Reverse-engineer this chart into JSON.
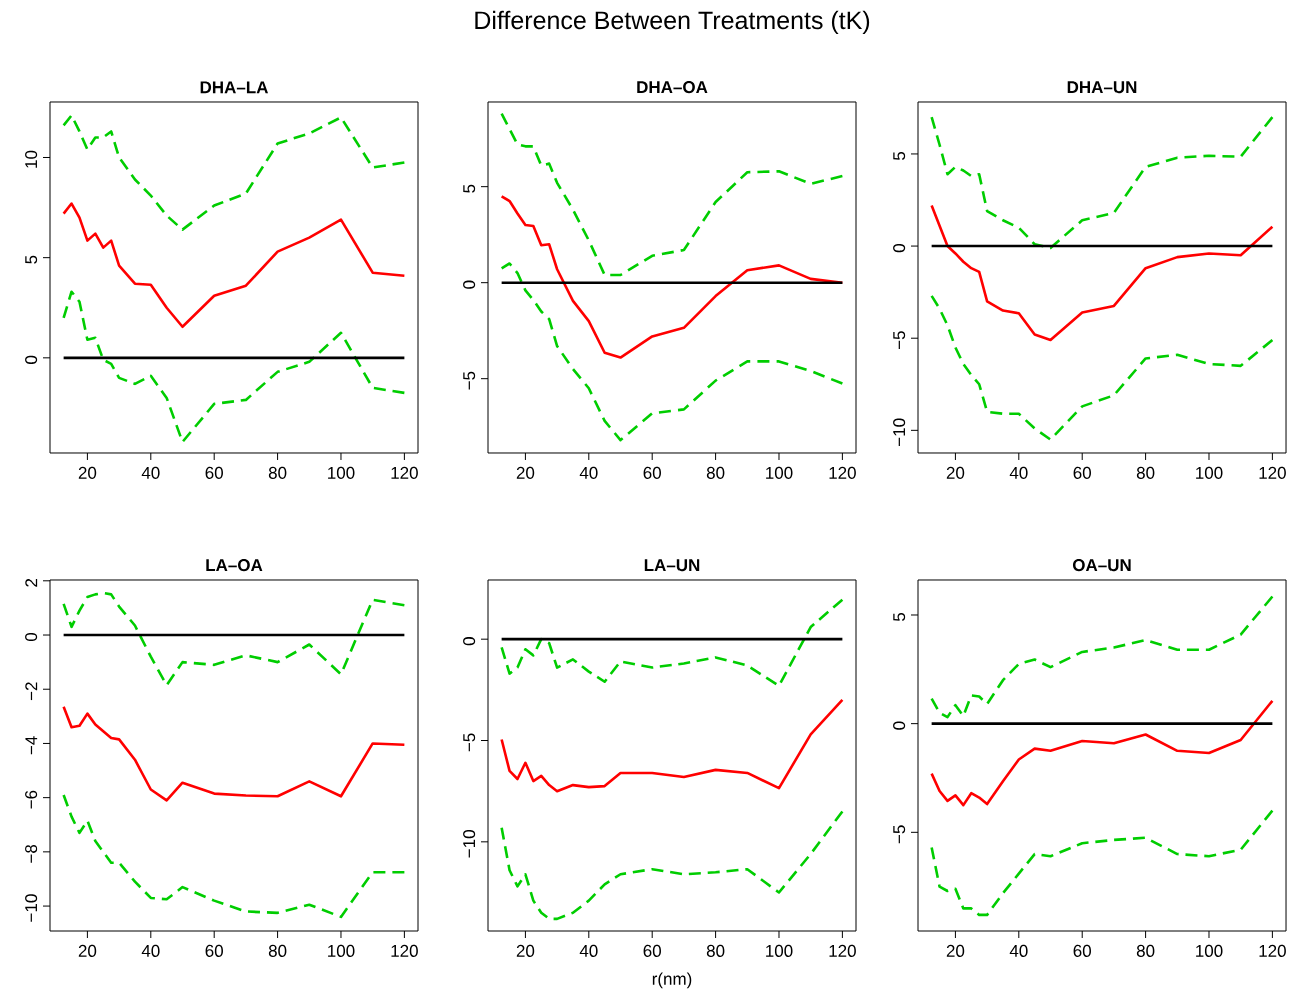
{
  "chart_data": [
    {
      "type": "line",
      "title": "DHA–LA",
      "xlim": [
        8.2,
        124.3
      ],
      "ylim": [
        -4.75,
        12.77
      ],
      "xticks": [
        20,
        40,
        60,
        80,
        100,
        120
      ],
      "yticks": [
        0,
        5,
        10
      ],
      "x": [
        12.5,
        15,
        17.5,
        20,
        22.5,
        25,
        27.5,
        30,
        35,
        40,
        45,
        50,
        60,
        70,
        80,
        90,
        100,
        110,
        120
      ],
      "ref_lines": [
        {
          "axis": "y",
          "value": 0,
          "color": "#000000"
        }
      ],
      "series": [
        {
          "color": "#00cd00",
          "line_style": "dashed",
          "values": [
            11.6,
            12.1,
            11.3,
            10.4,
            11.0,
            11.0,
            11.3,
            10.0,
            8.9,
            8.1,
            7.1,
            6.4,
            7.6,
            8.2,
            10.7,
            11.2,
            12.0,
            9.5,
            9.75
          ]
        },
        {
          "color": "#ff0000",
          "line_style": "solid",
          "values": [
            7.2,
            7.7,
            7.0,
            5.85,
            6.2,
            5.5,
            5.85,
            4.6,
            3.7,
            3.65,
            2.5,
            1.55,
            3.1,
            3.6,
            5.3,
            6.0,
            6.9,
            4.25,
            4.1
          ]
        },
        {
          "color": "#00cd00",
          "line_style": "dashed",
          "values": [
            2.0,
            3.3,
            2.8,
            0.9,
            1.0,
            -0.1,
            -0.3,
            -1.0,
            -1.3,
            -0.9,
            -2.0,
            -4.2,
            -2.3,
            -2.1,
            -0.7,
            -0.2,
            1.25,
            -1.5,
            -1.75
          ]
        }
      ]
    },
    {
      "type": "line",
      "title": "DHA–OA",
      "annotations": [
        "Difference Between Treatments (tK)"
      ],
      "xlim": [
        8.2,
        124.3
      ],
      "ylim": [
        -8.87,
        9.41
      ],
      "xticks": [
        20,
        40,
        60,
        80,
        100,
        120
      ],
      "yticks": [
        {
          "value": -5,
          "label": "−5"
        },
        0,
        5
      ],
      "x": [
        12.5,
        15,
        17.5,
        20,
        22.5,
        25,
        27.5,
        30,
        35,
        40,
        45,
        50,
        60,
        70,
        80,
        90,
        100,
        110,
        120
      ],
      "ref_lines": [
        {
          "axis": "y",
          "value": 0,
          "color": "#000000"
        }
      ],
      "series": [
        {
          "color": "#00cd00",
          "line_style": "dashed",
          "values": [
            8.8,
            8.0,
            7.2,
            7.1,
            7.1,
            6.1,
            6.2,
            5.2,
            3.8,
            2.2,
            0.4,
            0.4,
            1.4,
            1.7,
            4.2,
            5.75,
            5.8,
            5.15,
            5.55
          ]
        },
        {
          "color": "#ff0000",
          "line_style": "solid",
          "values": [
            4.5,
            4.25,
            3.6,
            3.0,
            2.95,
            1.95,
            2.0,
            0.7,
            -0.95,
            -2.0,
            -3.65,
            -3.9,
            -2.8,
            -2.35,
            -0.7,
            0.65,
            0.9,
            0.2,
            0
          ]
        },
        {
          "color": "#00cd00",
          "line_style": "dashed",
          "values": [
            0.75,
            1.0,
            0.5,
            -0.4,
            -0.9,
            -1.5,
            -1.9,
            -3.3,
            -4.5,
            -5.5,
            -7.2,
            -8.2,
            -6.8,
            -6.6,
            -5.1,
            -4.1,
            -4.1,
            -4.6,
            -5.25
          ]
        }
      ]
    },
    {
      "type": "line",
      "title": "DHA–UN",
      "xlim": [
        8.2,
        124.3
      ],
      "ylim": [
        -11.23,
        7.82
      ],
      "xticks": [
        20,
        40,
        60,
        80,
        100,
        120
      ],
      "yticks": [
        {
          "value": -10,
          "label": "−10"
        },
        {
          "value": -5,
          "label": "−5"
        },
        0,
        5
      ],
      "x": [
        12.5,
        15,
        17.5,
        20,
        22.5,
        25,
        27.5,
        30,
        35,
        40,
        45,
        50,
        60,
        70,
        80,
        90,
        100,
        110,
        120
      ],
      "ref_lines": [
        {
          "axis": "y",
          "value": 0,
          "color": "#000000"
        }
      ],
      "series": [
        {
          "color": "#00cd00",
          "line_style": "dashed",
          "values": [
            7.0,
            5.5,
            3.9,
            4.3,
            4.1,
            3.8,
            3.9,
            1.9,
            1.4,
            1.0,
            0.1,
            -0.1,
            1.4,
            1.8,
            4.3,
            4.8,
            4.9,
            4.85,
            7.0
          ]
        },
        {
          "color": "#ff0000",
          "line_style": "solid",
          "values": [
            2.2,
            1.1,
            0.0,
            -0.4,
            -0.85,
            -1.2,
            -1.4,
            -3.0,
            -3.5,
            -3.65,
            -4.8,
            -5.1,
            -3.6,
            -3.25,
            -1.2,
            -0.6,
            -0.4,
            -0.5,
            1.05
          ]
        },
        {
          "color": "#00cd00",
          "line_style": "dashed",
          "values": [
            -2.7,
            -3.4,
            -4.3,
            -5.5,
            -6.4,
            -7.0,
            -7.5,
            -9.0,
            -9.1,
            -9.1,
            -9.9,
            -10.5,
            -8.7,
            -8.1,
            -6.1,
            -5.9,
            -6.4,
            -6.5,
            -5.1
          ]
        }
      ]
    },
    {
      "type": "line",
      "title": "LA–OA",
      "xlim": [
        8.2,
        124.3
      ],
      "ylim": [
        -10.92,
        2.03
      ],
      "xticks": [
        20,
        40,
        60,
        80,
        100,
        120
      ],
      "yticks": [
        {
          "value": -10,
          "label": "−10"
        },
        {
          "value": -8,
          "label": "−8"
        },
        {
          "value": -6,
          "label": "−6"
        },
        {
          "value": -4,
          "label": "−4"
        },
        {
          "value": -2,
          "label": "−2"
        },
        0,
        2
      ],
      "x": [
        12.5,
        15,
        17.5,
        20,
        22.5,
        25,
        27.5,
        30,
        35,
        40,
        45,
        50,
        60,
        70,
        80,
        90,
        100,
        110,
        120
      ],
      "ref_lines": [
        {
          "axis": "y",
          "value": 0,
          "color": "#000000"
        }
      ],
      "series": [
        {
          "color": "#00cd00",
          "line_style": "dashed",
          "values": [
            1.15,
            0.3,
            0.9,
            1.4,
            1.5,
            1.55,
            1.5,
            1.05,
            0.35,
            -0.8,
            -1.85,
            -1.0,
            -1.1,
            -0.75,
            -1.0,
            -0.35,
            -1.45,
            1.3,
            1.1
          ]
        },
        {
          "color": "#ff0000",
          "line_style": "solid",
          "values": [
            -2.65,
            -3.4,
            -3.35,
            -2.9,
            -3.3,
            -3.55,
            -3.8,
            -3.85,
            -4.6,
            -5.7,
            -6.1,
            -5.45,
            -5.85,
            -5.92,
            -5.95,
            -5.4,
            -5.95,
            -4.0,
            -4.05
          ]
        },
        {
          "color": "#00cd00",
          "line_style": "dashed",
          "values": [
            -5.9,
            -6.7,
            -7.3,
            -6.85,
            -7.6,
            -8.0,
            -8.4,
            -8.4,
            -9.1,
            -9.7,
            -9.75,
            -9.3,
            -9.8,
            -10.2,
            -10.25,
            -9.95,
            -10.4,
            -8.75,
            -8.75
          ]
        }
      ]
    },
    {
      "type": "line",
      "title": "LA–UN",
      "xlabel": "r(nm)",
      "xlim": [
        8.2,
        124.3
      ],
      "ylim": [
        -14.4,
        2.92
      ],
      "xticks": [
        20,
        40,
        60,
        80,
        100,
        120
      ],
      "yticks": [
        {
          "value": -10,
          "label": "−10"
        },
        {
          "value": -5,
          "label": "−5"
        },
        0
      ],
      "x": [
        12.5,
        15,
        17.5,
        20,
        22.5,
        25,
        27.5,
        30,
        35,
        40,
        45,
        50,
        60,
        70,
        80,
        90,
        100,
        110,
        120
      ],
      "ref_lines": [
        {
          "axis": "y",
          "value": 0,
          "color": "#000000"
        }
      ],
      "series": [
        {
          "color": "#00cd00",
          "line_style": "dashed",
          "values": [
            -0.4,
            -1.7,
            -1.4,
            -0.5,
            -0.8,
            0.0,
            -0.2,
            -1.4,
            -1.0,
            -1.6,
            -2.1,
            -1.1,
            -1.4,
            -1.2,
            -0.9,
            -1.3,
            -2.3,
            0.6,
            1.95
          ]
        },
        {
          "color": "#ff0000",
          "line_style": "solid",
          "values": [
            -4.95,
            -6.5,
            -6.9,
            -6.1,
            -7.0,
            -6.75,
            -7.2,
            -7.5,
            -7.2,
            -7.3,
            -7.25,
            -6.6,
            -6.6,
            -6.8,
            -6.45,
            -6.6,
            -7.35,
            -4.7,
            -3.0
          ]
        },
        {
          "color": "#00cd00",
          "line_style": "dashed",
          "values": [
            -9.3,
            -11.4,
            -12.2,
            -11.6,
            -12.9,
            -13.5,
            -13.8,
            -13.8,
            -13.5,
            -12.9,
            -12.1,
            -11.6,
            -11.35,
            -11.6,
            -11.5,
            -11.35,
            -12.5,
            -10.6,
            -8.5
          ]
        }
      ]
    },
    {
      "type": "line",
      "title": "OA–UN",
      "xlim": [
        8.2,
        124.3
      ],
      "ylim": [
        -9.54,
        6.61
      ],
      "xticks": [
        20,
        40,
        60,
        80,
        100,
        120
      ],
      "yticks": [
        {
          "value": -5,
          "label": "−5"
        },
        0,
        5
      ],
      "x": [
        12.5,
        15,
        17.5,
        20,
        22.5,
        25,
        27.5,
        30,
        35,
        40,
        45,
        50,
        60,
        70,
        80,
        90,
        100,
        110,
        120
      ],
      "ref_lines": [
        {
          "axis": "y",
          "value": 0,
          "color": "#000000"
        }
      ],
      "series": [
        {
          "color": "#00cd00",
          "line_style": "dashed",
          "values": [
            1.15,
            0.5,
            0.3,
            0.85,
            0.35,
            1.3,
            1.25,
            0.9,
            2.0,
            2.75,
            2.95,
            2.6,
            3.3,
            3.5,
            3.85,
            3.4,
            3.4,
            4.1,
            5.85
          ]
        },
        {
          "color": "#ff0000",
          "line_style": "solid",
          "values": [
            -2.3,
            -3.1,
            -3.55,
            -3.3,
            -3.75,
            -3.2,
            -3.4,
            -3.7,
            -2.65,
            -1.65,
            -1.15,
            -1.25,
            -0.8,
            -0.9,
            -0.5,
            -1.25,
            -1.35,
            -0.75,
            1.05
          ]
        },
        {
          "color": "#00cd00",
          "line_style": "dashed",
          "values": [
            -5.7,
            -7.5,
            -7.7,
            -7.6,
            -8.5,
            -8.5,
            -8.8,
            -8.8,
            -7.8,
            -6.9,
            -6.0,
            -6.1,
            -5.5,
            -5.35,
            -5.25,
            -6.0,
            -6.1,
            -5.8,
            -4.0
          ]
        }
      ]
    }
  ]
}
